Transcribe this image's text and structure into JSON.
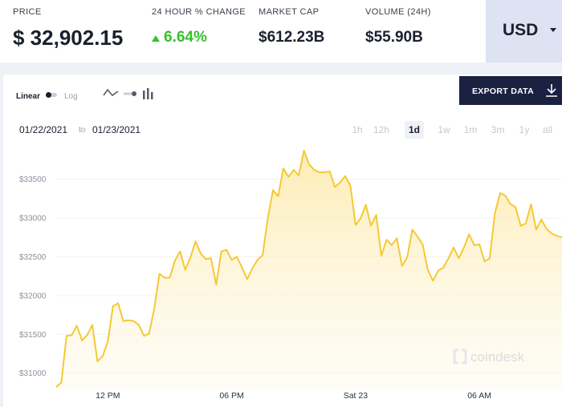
{
  "stats": {
    "price": {
      "label": "PRICE",
      "value": "$ 32,902.15"
    },
    "change": {
      "label": "24 HOUR % CHANGE",
      "value": "6.64%",
      "direction": "up",
      "color": "#35c12b"
    },
    "market_cap": {
      "label": "MARKET CAP",
      "value": "$612.23B"
    },
    "volume": {
      "label": "VOLUME (24H)",
      "value": "$55.90B"
    }
  },
  "currency": {
    "selected": "USD"
  },
  "toolbar": {
    "scale_linear": "Linear",
    "scale_log": "Log",
    "scale_selected": "linear",
    "chart_types": [
      "line-chart-icon",
      "scatter-chart-icon",
      "bar-chart-icon"
    ],
    "export_label": "EXPORT DATA"
  },
  "range": {
    "from": "01/22/2021",
    "to_word": "to",
    "to": "01/23/2021",
    "periods": [
      "1h",
      "12h",
      "1d",
      "1w",
      "1m",
      "3m",
      "1y",
      "all"
    ],
    "active": "1d"
  },
  "watermark": "coindesk",
  "colors": {
    "line": "#f5c933",
    "fill": "#fdf0c4",
    "accent": "#1b2141"
  },
  "chart_data": {
    "type": "area",
    "title": "",
    "xlabel": "",
    "ylabel": "",
    "ylim": [
      30800,
      33900
    ],
    "xlim": [
      "2021-01-22 09:30",
      "2021-01-23 10:00"
    ],
    "y_ticks": [
      31000,
      31500,
      32000,
      32500,
      33000,
      33500
    ],
    "y_tick_labels": [
      "$31000",
      "$31500",
      "$32000",
      "$32500",
      "$33000",
      "$33500"
    ],
    "x_ticks": [
      "2021-01-22 12:00",
      "2021-01-22 18:00",
      "2021-01-23 00:00",
      "2021-01-23 06:00"
    ],
    "x_tick_labels": [
      "12 PM",
      "06 PM",
      "Sat 23",
      "06 AM"
    ],
    "grid": true,
    "legend": "none",
    "series": [
      {
        "name": "",
        "x": [
          "2021-01-22 09:30",
          "2021-01-22 09:45",
          "2021-01-22 10:00",
          "2021-01-22 10:15",
          "2021-01-22 10:30",
          "2021-01-22 10:45",
          "2021-01-22 11:00",
          "2021-01-22 11:15",
          "2021-01-22 11:30",
          "2021-01-22 11:45",
          "2021-01-22 12:00",
          "2021-01-22 12:15",
          "2021-01-22 12:30",
          "2021-01-22 12:45",
          "2021-01-22 13:00",
          "2021-01-22 13:15",
          "2021-01-22 13:30",
          "2021-01-22 13:45",
          "2021-01-22 14:00",
          "2021-01-22 14:15",
          "2021-01-22 14:30",
          "2021-01-22 14:45",
          "2021-01-22 15:00",
          "2021-01-22 15:15",
          "2021-01-22 15:30",
          "2021-01-22 15:45",
          "2021-01-22 16:00",
          "2021-01-22 16:15",
          "2021-01-22 16:30",
          "2021-01-22 16:45",
          "2021-01-22 17:00",
          "2021-01-22 17:15",
          "2021-01-22 17:30",
          "2021-01-22 17:45",
          "2021-01-22 18:00",
          "2021-01-22 18:15",
          "2021-01-22 18:30",
          "2021-01-22 18:45",
          "2021-01-22 19:00",
          "2021-01-22 19:15",
          "2021-01-22 19:30",
          "2021-01-22 19:45",
          "2021-01-22 20:00",
          "2021-01-22 20:15",
          "2021-01-22 20:30",
          "2021-01-22 20:45",
          "2021-01-22 21:00",
          "2021-01-22 21:15",
          "2021-01-22 21:30",
          "2021-01-22 21:45",
          "2021-01-22 22:00",
          "2021-01-22 22:15",
          "2021-01-22 22:30",
          "2021-01-22 22:45",
          "2021-01-22 23:00",
          "2021-01-22 23:15",
          "2021-01-22 23:30",
          "2021-01-22 23:45",
          "2021-01-23 00:00",
          "2021-01-23 00:15",
          "2021-01-23 00:30",
          "2021-01-23 00:45",
          "2021-01-23 01:00",
          "2021-01-23 01:15",
          "2021-01-23 01:30",
          "2021-01-23 01:45",
          "2021-01-23 02:00",
          "2021-01-23 02:15",
          "2021-01-23 02:30",
          "2021-01-23 02:45",
          "2021-01-23 03:00",
          "2021-01-23 03:15",
          "2021-01-23 03:30",
          "2021-01-23 03:45",
          "2021-01-23 04:00",
          "2021-01-23 04:15",
          "2021-01-23 04:30",
          "2021-01-23 04:45",
          "2021-01-23 05:00",
          "2021-01-23 05:15",
          "2021-01-23 05:30",
          "2021-01-23 05:45",
          "2021-01-23 06:00",
          "2021-01-23 06:15",
          "2021-01-23 06:30",
          "2021-01-23 06:45",
          "2021-01-23 07:00",
          "2021-01-23 07:15",
          "2021-01-23 07:30",
          "2021-01-23 07:45",
          "2021-01-23 08:00",
          "2021-01-23 08:15",
          "2021-01-23 08:30",
          "2021-01-23 08:45",
          "2021-01-23 09:00",
          "2021-01-23 09:15",
          "2021-01-23 09:30",
          "2021-01-23 09:45",
          "2021-01-23 10:00"
        ],
        "values": [
          30820,
          30880,
          31480,
          31490,
          31610,
          31420,
          31490,
          31620,
          31150,
          31220,
          31410,
          31860,
          31900,
          31670,
          31680,
          31670,
          31620,
          31480,
          31510,
          31830,
          32280,
          32230,
          32230,
          32450,
          32570,
          32330,
          32490,
          32700,
          32540,
          32470,
          32480,
          32140,
          32570,
          32590,
          32460,
          32500,
          32360,
          32210,
          32350,
          32460,
          32520,
          33000,
          33360,
          33280,
          33640,
          33530,
          33620,
          33550,
          33870,
          33690,
          33620,
          33590,
          33590,
          33600,
          33400,
          33460,
          33540,
          33420,
          32910,
          33000,
          33170,
          32900,
          33040,
          32510,
          32720,
          32650,
          32740,
          32380,
          32490,
          32850,
          32760,
          32660,
          32330,
          32190,
          32320,
          32360,
          32480,
          32620,
          32480,
          32620,
          32790,
          32650,
          32660,
          32440,
          32480,
          33060,
          33320,
          33290,
          33180,
          33140,
          32900,
          32930,
          33180,
          32850,
          32980,
          32860,
          32800,
          32770,
          32750
        ]
      }
    ]
  }
}
